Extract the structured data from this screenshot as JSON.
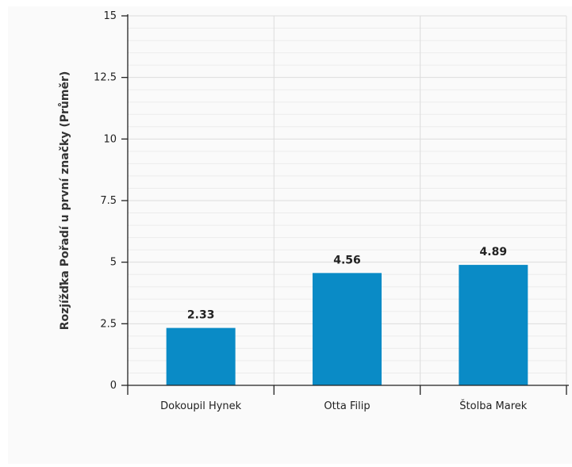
{
  "chart_data": {
    "type": "bar",
    "categories": [
      "Dokoupil Hynek",
      "Otta Filip",
      "Štolba Marek"
    ],
    "values": [
      2.33,
      4.56,
      4.89
    ],
    "data_labels": [
      "2.33",
      "4.56",
      "4.89"
    ],
    "title": "",
    "xlabel": "",
    "ylabel": "Rozjížďka Pořadí u první značky (Průměr)",
    "ylim": [
      0,
      15
    ],
    "yticks": [
      0,
      2.5,
      5,
      7.5,
      10,
      12.5,
      15
    ],
    "ytick_labels": [
      "0",
      "2.5",
      "5",
      "7.5",
      "10",
      "12.5",
      "15"
    ],
    "grid": true,
    "legend": "none",
    "colors": {
      "bar": "#0a8bc6",
      "grid_major": "#dcdcdc",
      "grid_minor": "#ececec",
      "axis": "#222222",
      "background": "#fafafa"
    }
  }
}
